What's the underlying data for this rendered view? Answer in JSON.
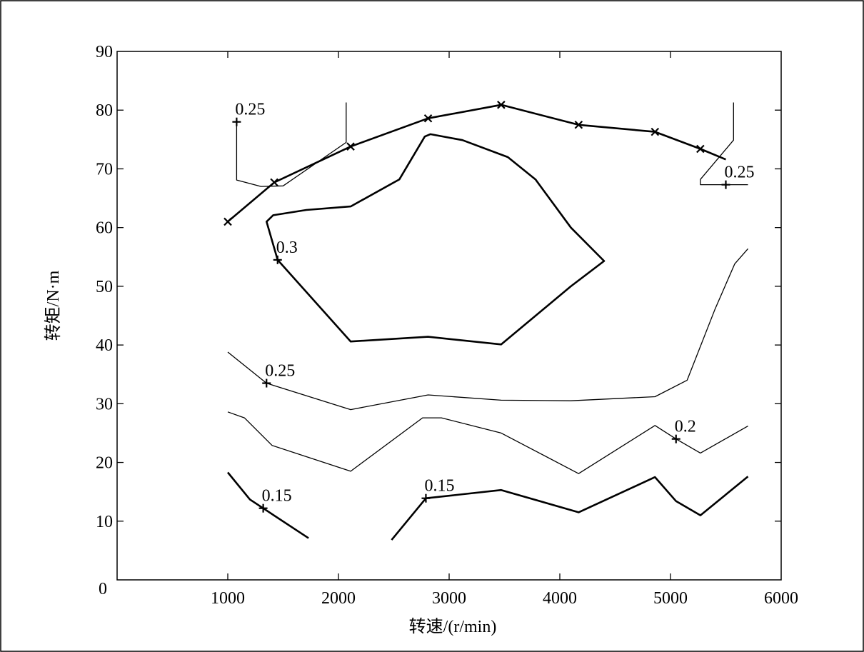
{
  "chart_data": {
    "type": "line",
    "xlabel": "转速/(r/min)",
    "ylabel": "转矩/N·m",
    "xlim": [
      0,
      6000
    ],
    "ylim": [
      0,
      90
    ],
    "x_ticks": [
      "0",
      "1000",
      "2000",
      "3000",
      "4000",
      "5000",
      "6000"
    ],
    "y_ticks": [
      "10",
      "20",
      "30",
      "40",
      "50",
      "60",
      "70",
      "80",
      "90"
    ],
    "grid": false,
    "series": [
      {
        "style": "thick-x-markers",
        "points": [
          [
            1000,
            61
          ],
          [
            1420,
            67.7
          ],
          [
            2110,
            73.8
          ],
          [
            2810,
            78.6
          ],
          [
            3470,
            80.9
          ],
          [
            4170,
            77.5
          ],
          [
            4860,
            76.3
          ],
          [
            5270,
            73.4
          ],
          [
            5500,
            71.6
          ]
        ],
        "markers": [
          [
            1000,
            61
          ],
          [
            1420,
            67.7
          ],
          [
            2110,
            73.8
          ],
          [
            2810,
            78.6
          ],
          [
            3470,
            80.9
          ],
          [
            4170,
            77.5
          ],
          [
            4860,
            76.3
          ],
          [
            5270,
            73.4
          ]
        ]
      },
      {
        "level": "0.3",
        "style": "thick",
        "points": [
          [
            1450,
            54.5
          ],
          [
            1350,
            61
          ],
          [
            1410,
            62.1
          ],
          [
            1710,
            63
          ],
          [
            2110,
            63.6
          ],
          [
            2550,
            68.2
          ],
          [
            2780,
            75.5
          ],
          [
            2830,
            75.9
          ],
          [
            3120,
            74.9
          ],
          [
            3530,
            72
          ],
          [
            3780,
            68.2
          ],
          [
            4100,
            60
          ],
          [
            4400,
            54.3
          ],
          [
            4100,
            50
          ],
          [
            3470,
            40.1
          ],
          [
            2810,
            41.4
          ],
          [
            2110,
            40.6
          ],
          [
            1450,
            54.5
          ]
        ],
        "label_at": [
          1450,
          54.5
        ]
      },
      {
        "level": "0.25",
        "style": "thin",
        "points": [
          [
            1000,
            38.8
          ],
          [
            1350,
            33.5
          ],
          [
            2110,
            29
          ],
          [
            2810,
            31.5
          ],
          [
            3470,
            30.6
          ],
          [
            4100,
            30.5
          ],
          [
            4860,
            31.2
          ],
          [
            5150,
            34
          ],
          [
            5400,
            46
          ],
          [
            5580,
            53.8
          ],
          [
            5700,
            56.4
          ]
        ],
        "label_at": [
          1350,
          33.5
        ]
      },
      {
        "level": "0.2",
        "style": "thin",
        "points": [
          [
            1000,
            28.6
          ],
          [
            1150,
            27.6
          ],
          [
            1400,
            22.9
          ],
          [
            2110,
            18.5
          ],
          [
            2760,
            27.6
          ],
          [
            2930,
            27.6
          ],
          [
            3470,
            25
          ],
          [
            4170,
            18.1
          ],
          [
            4860,
            26.3
          ],
          [
            5050,
            24
          ],
          [
            5270,
            21.6
          ],
          [
            5700,
            26.2
          ]
        ],
        "label_at": [
          5050,
          24
        ]
      },
      {
        "level": "0.15",
        "style": "thick",
        "points": [
          [
            1000,
            18.3
          ],
          [
            1200,
            13.7
          ],
          [
            1320,
            12.2
          ],
          [
            1730,
            7.1
          ]
        ],
        "label_at": [
          1320,
          12.2
        ]
      },
      {
        "level": "0.15",
        "style": "thick",
        "points": [
          [
            2480,
            6.8
          ],
          [
            2790,
            13.9
          ],
          [
            3470,
            15.3
          ],
          [
            4170,
            11.5
          ],
          [
            4860,
            17.5
          ],
          [
            5050,
            13.4
          ],
          [
            5270,
            11
          ],
          [
            5700,
            17.6
          ]
        ],
        "label_at": [
          2790,
          13.9
        ]
      },
      {
        "level": "0.25",
        "style": "thin",
        "points": [
          [
            1080,
            78
          ],
          [
            1080,
            68.1
          ],
          [
            1300,
            67
          ],
          [
            1500,
            67.1
          ],
          [
            2070,
            74.5
          ],
          [
            2070,
            81.3
          ]
        ],
        "label_at": [
          1080,
          78
        ]
      },
      {
        "level": "0.25",
        "style": "thin",
        "points": [
          [
            5700,
            67.3
          ],
          [
            5270,
            67.3
          ],
          [
            5270,
            68.2
          ],
          [
            5570,
            74.9
          ],
          [
            5570,
            81.3
          ]
        ],
        "label_at": [
          5500,
          67.3
        ]
      }
    ]
  }
}
